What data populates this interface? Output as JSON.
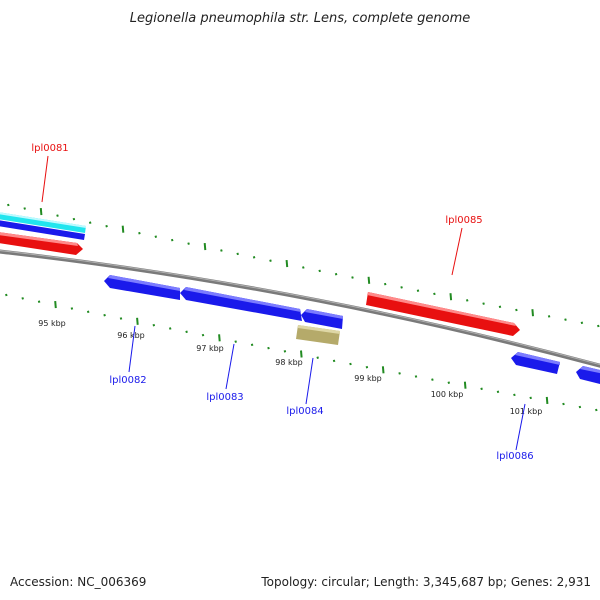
{
  "title": "Legionella pneumophila str. Lens, complete genome",
  "footer": {
    "accession": "Accession: NC_006369",
    "topology": "Topology: circular; Length: 3,345,687 bp; Genes: 2,931"
  },
  "ruler": {
    "unit_suffix": " kbp",
    "labels": [
      "95 kbp",
      "96 kbp",
      "97 kbp",
      "98 kbp",
      "99 kbp",
      "100 kbp",
      "101 kbp"
    ]
  },
  "genes": [
    {
      "name": "lpl0081",
      "strand": "forward",
      "color": "#e81010"
    },
    {
      "name": "lpl0082",
      "strand": "reverse",
      "color": "#1a1aeb"
    },
    {
      "name": "lpl0083",
      "strand": "reverse",
      "color": "#1a1aeb"
    },
    {
      "name": "lpl0084",
      "strand": "reverse",
      "color": "#1a1aeb"
    },
    {
      "name": "lpl0085",
      "strand": "forward",
      "color": "#e81010"
    },
    {
      "name": "lpl0086",
      "strand": "reverse",
      "color": "#1a1aeb"
    }
  ],
  "other_feature_color": "#b5aa6a",
  "highlight_colors": {
    "cyan": "#21e5ee",
    "blue": "#1a1aeb"
  },
  "backbone_color": "#888888",
  "tick_color": "#228b22"
}
